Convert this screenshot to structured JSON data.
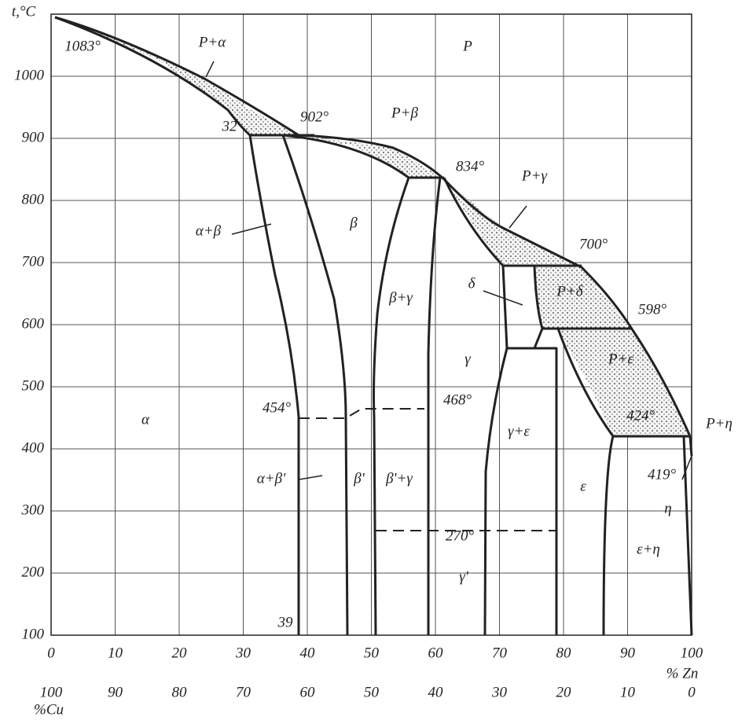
{
  "axes": {
    "y_label": "t,°C",
    "x_label": "% Zn",
    "x2_label": "%Cu",
    "yticks": [
      100,
      200,
      300,
      400,
      500,
      600,
      700,
      800,
      900,
      1000
    ],
    "xticks": [
      0,
      10,
      20,
      30,
      40,
      50,
      60,
      70,
      80,
      90,
      100
    ],
    "x2ticks": [
      100,
      90,
      80,
      70,
      60,
      50,
      40,
      30,
      20,
      10,
      0
    ]
  },
  "region_labels": [
    "P",
    "P+α",
    "P+β",
    "P+γ",
    "P+δ",
    "P+ε",
    "P+η",
    "α",
    "α+β",
    "β",
    "β+γ",
    "γ",
    "δ",
    "γ+ε",
    "ε",
    "η",
    "ε+η",
    "α+β'",
    "β'",
    "β'+γ",
    "γ'"
  ],
  "temperature_labels": [
    "1083°",
    "902°",
    "32",
    "834°",
    "700°",
    "598°",
    "424°",
    "419°",
    "454°",
    "468°",
    "270°",
    "39"
  ]
}
